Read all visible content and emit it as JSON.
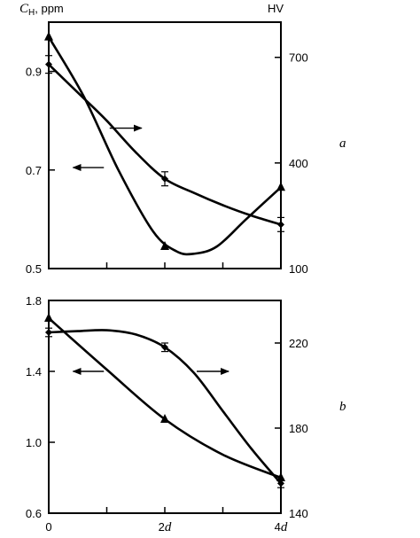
{
  "chart_data": [
    {
      "type": "line",
      "panel_label": "a",
      "left_axis_title": "C",
      "left_axis_title_sub": "H",
      "left_axis_title_unit": ", ppm",
      "right_axis_title": "HV",
      "x_ticks": [
        0,
        1,
        2,
        3,
        4
      ],
      "x_tick_labels": [
        "",
        "",
        "",
        "",
        ""
      ],
      "left_ylim": [
        0.5,
        1.0
      ],
      "left_ticks": [
        0.5,
        0.7,
        0.9
      ],
      "left_tick_labels": [
        "0.5",
        "0.7",
        "0.9"
      ],
      "right_ylim": [
        100,
        800
      ],
      "right_ticks": [
        100,
        400,
        700
      ],
      "right_tick_labels": [
        "100",
        "400",
        "700"
      ],
      "series": [
        {
          "axis": "left",
          "marker": "triangle",
          "points": [
            {
              "x": 0,
              "y": 0.97
            },
            {
              "x": 2,
              "y": 0.545
            },
            {
              "x": 4,
              "y": 0.665
            }
          ],
          "curve": [
            [
              0,
              0.97
            ],
            [
              0.6,
              0.85
            ],
            [
              1.2,
              0.7
            ],
            [
              1.8,
              0.575
            ],
            [
              2.2,
              0.535
            ],
            [
              2.5,
              0.53
            ],
            [
              2.9,
              0.545
            ],
            [
              3.4,
              0.6
            ],
            [
              4,
              0.665
            ]
          ]
        },
        {
          "axis": "right",
          "marker": "diamond",
          "points": [
            {
              "x": 0,
              "y": 680,
              "err": 25
            },
            {
              "x": 2,
              "y": 355,
              "err": 20
            },
            {
              "x": 4,
              "y": 225,
              "err": 20
            }
          ],
          "curve": [
            [
              0,
              680
            ],
            [
              0.5,
              600
            ],
            [
              1,
              520
            ],
            [
              1.5,
              430
            ],
            [
              2,
              355
            ],
            [
              2.5,
              315
            ],
            [
              3,
              280
            ],
            [
              3.5,
              250
            ],
            [
              4,
              225
            ]
          ]
        }
      ],
      "arrows": [
        {
          "direction": "right",
          "x1": 1.05,
          "x2": 1.6,
          "y_left": 0.785
        },
        {
          "direction": "left",
          "x1": 0.95,
          "x2": 0.42,
          "y_left": 0.705
        }
      ]
    },
    {
      "type": "line",
      "panel_label": "b",
      "x_ticks": [
        0,
        1,
        2,
        3,
        4
      ],
      "x_tick_labels": [
        "0",
        "",
        "2d",
        "",
        "4d"
      ],
      "left_ylim": [
        0.6,
        1.8
      ],
      "left_ticks": [
        0.6,
        1.0,
        1.4,
        1.8
      ],
      "left_tick_labels": [
        "0.6",
        "1.0",
        "1.4",
        "1.8"
      ],
      "right_ylim": [
        140,
        240
      ],
      "right_ticks": [
        140,
        180,
        220
      ],
      "right_tick_labels": [
        "140",
        "180",
        "220"
      ],
      "series": [
        {
          "axis": "left",
          "marker": "triangle",
          "points": [
            {
              "x": 0,
              "y": 1.7
            },
            {
              "x": 2,
              "y": 1.13
            },
            {
              "x": 4,
              "y": 0.8
            }
          ],
          "curve": [
            [
              0,
              1.7
            ],
            [
              1,
              1.41
            ],
            [
              2,
              1.13
            ],
            [
              3,
              0.93
            ],
            [
              4,
              0.8
            ]
          ]
        },
        {
          "axis": "right",
          "marker": "diamond",
          "points": [
            {
              "x": 0,
              "y": 225,
              "err": 2
            },
            {
              "x": 2,
              "y": 218,
              "err": 2
            },
            {
              "x": 4,
              "y": 154,
              "err": 2
            }
          ],
          "curve": [
            [
              0,
              225
            ],
            [
              0.5,
              225.6
            ],
            [
              1,
              226
            ],
            [
              1.5,
              224
            ],
            [
              2,
              218
            ],
            [
              2.5,
              206
            ],
            [
              3,
              188
            ],
            [
              3.5,
              170
            ],
            [
              4,
              154
            ]
          ]
        }
      ],
      "arrows": [
        {
          "direction": "left",
          "x1": 0.95,
          "x2": 0.42,
          "y_left": 1.4
        },
        {
          "direction": "right",
          "x1": 2.55,
          "x2": 3.1,
          "y_left": 1.4
        }
      ]
    }
  ]
}
